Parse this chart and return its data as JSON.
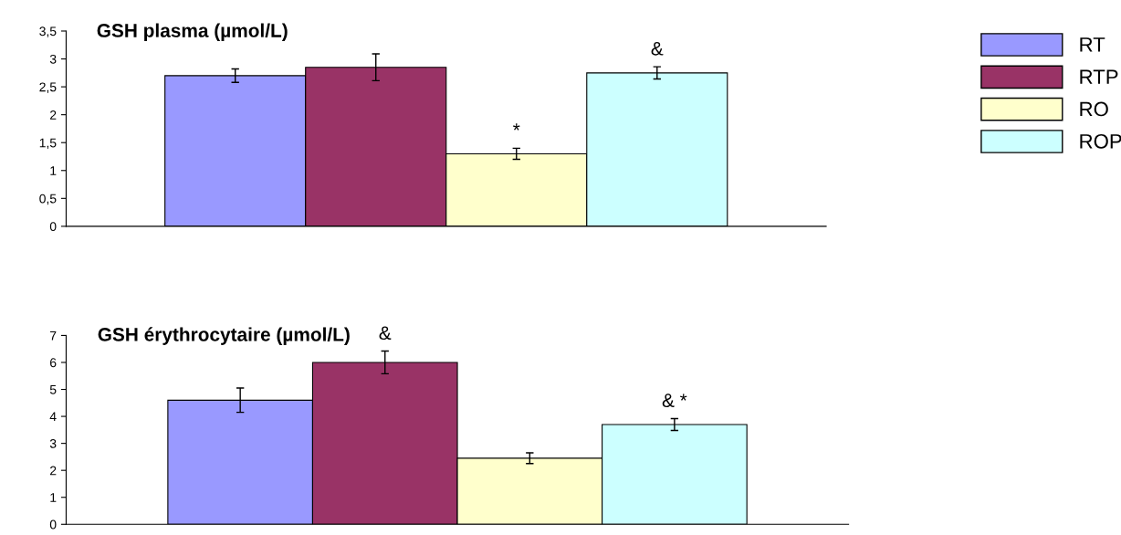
{
  "chart_data": [
    {
      "type": "bar",
      "title": "GSH plasma (µmol/L)",
      "categories": [
        null
      ],
      "ylim": [
        0,
        3.5
      ],
      "yticks": [
        0,
        {
          "value": 0.5,
          "label": "0,5"
        },
        1,
        {
          "value": 1.5,
          "label": "1,5"
        },
        2,
        {
          "value": 2.5,
          "label": "2,5"
        },
        3,
        {
          "value": 3.5,
          "label": "3,5"
        }
      ],
      "legend": "right",
      "grid": false,
      "series": [
        {
          "name": "RT",
          "color": "#9999ff",
          "values": [
            2.7
          ],
          "errors": [
            0.12
          ]
        },
        {
          "name": "RTP",
          "color": "#993366",
          "values": [
            2.85
          ],
          "errors": [
            0.24
          ]
        },
        {
          "name": "RO",
          "color": "#ffffcc",
          "values": [
            1.3
          ],
          "errors": [
            0.1
          ],
          "value_labels": [
            "*"
          ]
        },
        {
          "name": "ROP",
          "color": "#ccffff",
          "values": [
            2.75
          ],
          "errors": [
            0.11
          ],
          "value_labels": [
            "&"
          ]
        }
      ]
    },
    {
      "type": "bar",
      "title": "GSH érythrocytaire (µmol/L)",
      "categories": [
        null
      ],
      "ylim": [
        0,
        7
      ],
      "yticks": [
        0,
        1,
        2,
        3,
        4,
        5,
        6,
        7
      ],
      "grid": false,
      "series": [
        {
          "color": "#9999ff",
          "values": [
            4.6
          ],
          "errors": [
            0.45
          ]
        },
        {
          "color": "#993366",
          "values": [
            6.0
          ],
          "errors": [
            0.42
          ],
          "value_labels": [
            "&"
          ]
        },
        {
          "color": "#ffffcc",
          "values": [
            2.45
          ],
          "errors": [
            0.2
          ]
        },
        {
          "color": "#ccffff",
          "values": [
            3.7
          ],
          "errors": [
            0.22
          ],
          "value_labels": [
            "& *"
          ]
        }
      ]
    }
  ]
}
